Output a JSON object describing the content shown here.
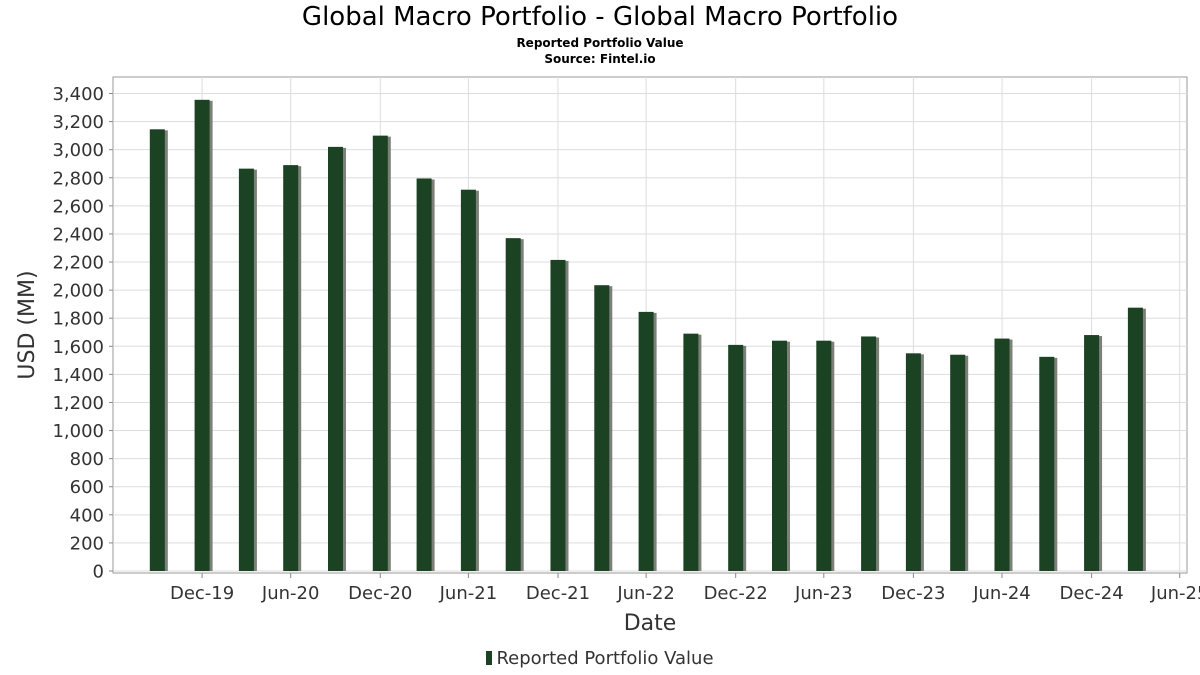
{
  "header": {
    "title": "Global Macro Portfolio - Global Macro Portfolio",
    "subtitle": "Reported Portfolio Value",
    "source": "Source: Fintel.io"
  },
  "legend": {
    "label": "Reported Portfolio Value"
  },
  "colors": {
    "bar": "#1a4223",
    "bar_shadow": "#7d8079",
    "grid": "#dddddd",
    "axis": "#888888"
  },
  "chart_data": {
    "type": "bar",
    "title": "Global Macro Portfolio - Global Macro Portfolio",
    "subtitle": "Reported Portfolio Value",
    "xlabel": "Date",
    "ylabel": "USD (MM)",
    "ylim": [
      0,
      3500
    ],
    "yticks": [
      0,
      200,
      400,
      600,
      800,
      1000,
      1200,
      1400,
      1600,
      1800,
      2000,
      2200,
      2400,
      2600,
      2800,
      3000,
      3200,
      3400
    ],
    "ytick_labels": [
      "0",
      "200",
      "400",
      "600",
      "800",
      "1,000",
      "1,200",
      "1,400",
      "1,600",
      "1,800",
      "2,000",
      "2,200",
      "2,400",
      "2,600",
      "2,800",
      "3,000",
      "3,200",
      "3,400"
    ],
    "xlim": [
      "2019-07-01",
      "2025-07-15"
    ],
    "xticks": [
      {
        "date": "2019-12-31",
        "label": "Dec-19"
      },
      {
        "date": "2020-06-30",
        "label": "Jun-20"
      },
      {
        "date": "2020-12-31",
        "label": "Dec-20"
      },
      {
        "date": "2021-06-30",
        "label": "Jun-21"
      },
      {
        "date": "2021-12-31",
        "label": "Dec-21"
      },
      {
        "date": "2022-06-30",
        "label": "Jun-22"
      },
      {
        "date": "2022-12-31",
        "label": "Dec-22"
      },
      {
        "date": "2023-06-30",
        "label": "Jun-23"
      },
      {
        "date": "2023-12-31",
        "label": "Dec-23"
      },
      {
        "date": "2024-06-30",
        "label": "Jun-24"
      },
      {
        "date": "2024-12-31",
        "label": "Dec-24"
      },
      {
        "date": "2025-06-30",
        "label": "Jun-25"
      }
    ],
    "grid": true,
    "legend_position": "bottom",
    "series": [
      {
        "name": "Reported Portfolio Value",
        "x": [
          "2019-09-30",
          "2019-12-31",
          "2020-03-31",
          "2020-06-30",
          "2020-09-30",
          "2020-12-31",
          "2021-03-31",
          "2021-06-30",
          "2021-09-30",
          "2021-12-31",
          "2022-03-31",
          "2022-06-30",
          "2022-09-30",
          "2022-12-31",
          "2023-03-31",
          "2023-06-30",
          "2023-09-30",
          "2023-12-31",
          "2024-03-31",
          "2024-06-30",
          "2024-09-30",
          "2024-12-31",
          "2025-03-31"
        ],
        "values": [
          3145,
          3355,
          2865,
          2890,
          3020,
          3100,
          2795,
          2715,
          2370,
          2215,
          2035,
          1845,
          1690,
          1610,
          1640,
          1640,
          1670,
          1550,
          1540,
          1655,
          1525,
          1680,
          1875
        ]
      }
    ]
  }
}
